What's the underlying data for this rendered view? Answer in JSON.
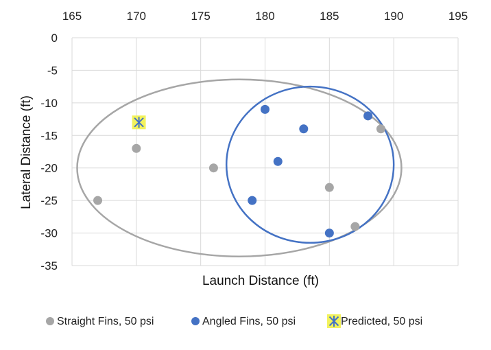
{
  "chart_data": {
    "type": "scatter",
    "title": "",
    "xlabel": "Launch Distance (ft)",
    "ylabel": "Lateral Distance (ft)",
    "xlim": [
      165,
      195
    ],
    "ylim": [
      -35,
      0
    ],
    "x_ticks": [
      165,
      170,
      175,
      180,
      185,
      190,
      195
    ],
    "y_ticks": [
      0,
      -5,
      -10,
      -15,
      -20,
      -25,
      -30,
      -35
    ],
    "x_axis_position": "top",
    "grid": true,
    "legend_position": "bottom",
    "series": [
      {
        "name": "Straight Fins, 50 psi",
        "color": "#a6a6a6",
        "marker": "circle",
        "points": [
          {
            "x": 167,
            "y": -25
          },
          {
            "x": 170,
            "y": -17
          },
          {
            "x": 176,
            "y": -20
          },
          {
            "x": 185,
            "y": -23
          },
          {
            "x": 187,
            "y": -29
          },
          {
            "x": 189,
            "y": -14
          },
          {
            "x": 188,
            "y": -12
          }
        ]
      },
      {
        "name": "Angled Fins, 50 psi",
        "color": "#4472c4",
        "marker": "circle",
        "points": [
          {
            "x": 180,
            "y": -11
          },
          {
            "x": 183,
            "y": -14
          },
          {
            "x": 181,
            "y": -19
          },
          {
            "x": 179,
            "y": -25
          },
          {
            "x": 185,
            "y": -30
          },
          {
            "x": 188,
            "y": -12
          }
        ]
      },
      {
        "name": "Predicted, 50 psi",
        "color": "#4472c4",
        "background": "#f2f25c",
        "marker": "star",
        "points": [
          {
            "x": 170.2,
            "y": -13
          }
        ]
      }
    ],
    "annotations": [
      {
        "type": "ellipse",
        "name": "straight-fins-ellipse",
        "color": "#a6a6a6",
        "cx": 178,
        "cy": -20,
        "rx": 12.6,
        "ry": 13.6
      },
      {
        "type": "ellipse",
        "name": "angled-fins-ellipse",
        "color": "#4472c4",
        "cx": 183.5,
        "cy": -19.5,
        "rx": 6.5,
        "ry": 12.0
      }
    ]
  }
}
